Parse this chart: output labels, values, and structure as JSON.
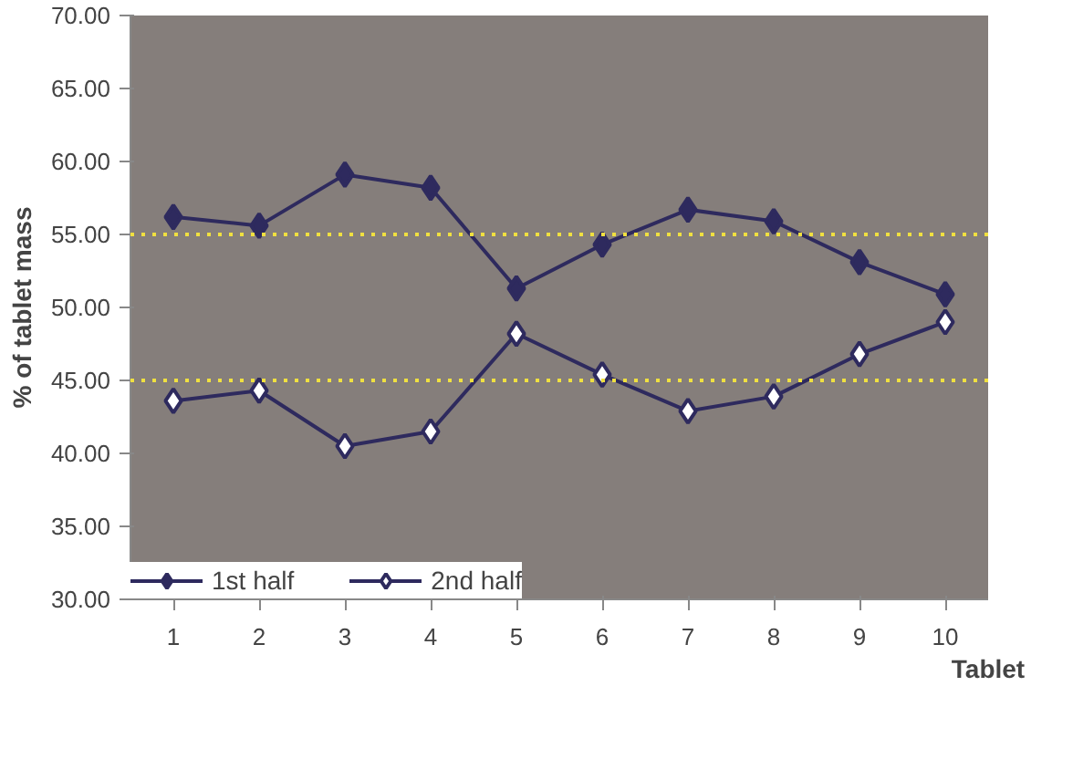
{
  "chart_data": {
    "type": "line",
    "xlabel": "Tablet",
    "ylabel": "% of tablet mass",
    "categories": [
      "1",
      "2",
      "3",
      "4",
      "5",
      "6",
      "7",
      "8",
      "9",
      "10"
    ],
    "series": [
      {
        "name": "1st half",
        "color": "#2e2a5e",
        "marker": "diamond",
        "values": [
          56.2,
          55.6,
          59.1,
          58.2,
          51.3,
          54.3,
          56.7,
          55.9,
          53.1,
          50.9
        ]
      },
      {
        "name": "2nd half",
        "color": "#2e2a5e",
        "marker": "diamond_open",
        "values": [
          43.6,
          44.3,
          40.5,
          41.5,
          48.2,
          45.4,
          42.9,
          43.9,
          46.8,
          49.0
        ]
      }
    ],
    "ylim": [
      30,
      70
    ],
    "yticks": [
      {
        "value": 30,
        "label": "30.00"
      },
      {
        "value": 35,
        "label": "35.00"
      },
      {
        "value": 40,
        "label": "40.00"
      },
      {
        "value": 45,
        "label": "45.00"
      },
      {
        "value": 50,
        "label": "50.00"
      },
      {
        "value": 55,
        "label": "55.00"
      },
      {
        "value": 60,
        "label": "60.00"
      },
      {
        "value": 65,
        "label": "65.00"
      },
      {
        "value": 70,
        "label": "70.00"
      }
    ],
    "ref_lines": [
      {
        "axis": "y",
        "value": 55,
        "label": null,
        "color": "#f0e040",
        "line_style": "dotted"
      },
      {
        "axis": "y",
        "value": 45,
        "label": null,
        "color": "#f0e040",
        "line_style": "dotted"
      }
    ],
    "grid": false,
    "legend": "bottom",
    "line_style": "solid"
  }
}
